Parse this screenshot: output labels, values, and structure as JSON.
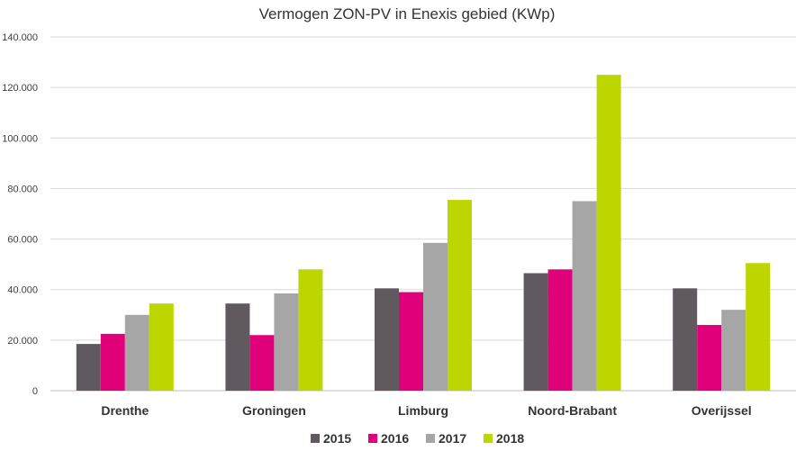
{
  "chart_data": {
    "type": "bar",
    "title": "Vermogen ZON-PV in Enexis gebied (KWp)",
    "xlabel": "",
    "ylabel": "",
    "ylim": [
      0,
      140000
    ],
    "yticks": [
      0,
      20000,
      40000,
      60000,
      80000,
      100000,
      120000,
      140000
    ],
    "ytick_labels": [
      "0",
      "20.000",
      "40.000",
      "60.000",
      "80.000",
      "100.000",
      "120.000",
      "140.000"
    ],
    "categories": [
      "Drenthe",
      "Groningen",
      "Limburg",
      "Noord-Brabant",
      "Overijssel"
    ],
    "series": [
      {
        "name": "2015",
        "color": "#605a60",
        "values": [
          18500,
          34500,
          40500,
          46500,
          40500
        ]
      },
      {
        "name": "2016",
        "color": "#e0007a",
        "values": [
          22500,
          22000,
          39000,
          48000,
          26000
        ]
      },
      {
        "name": "2017",
        "color": "#a6a6a6",
        "values": [
          30000,
          38500,
          58500,
          75000,
          32000
        ]
      },
      {
        "name": "2018",
        "color": "#bed600",
        "values": [
          34500,
          48000,
          75500,
          125000,
          50500
        ]
      }
    ],
    "grid": true,
    "legend_position": "bottom"
  }
}
